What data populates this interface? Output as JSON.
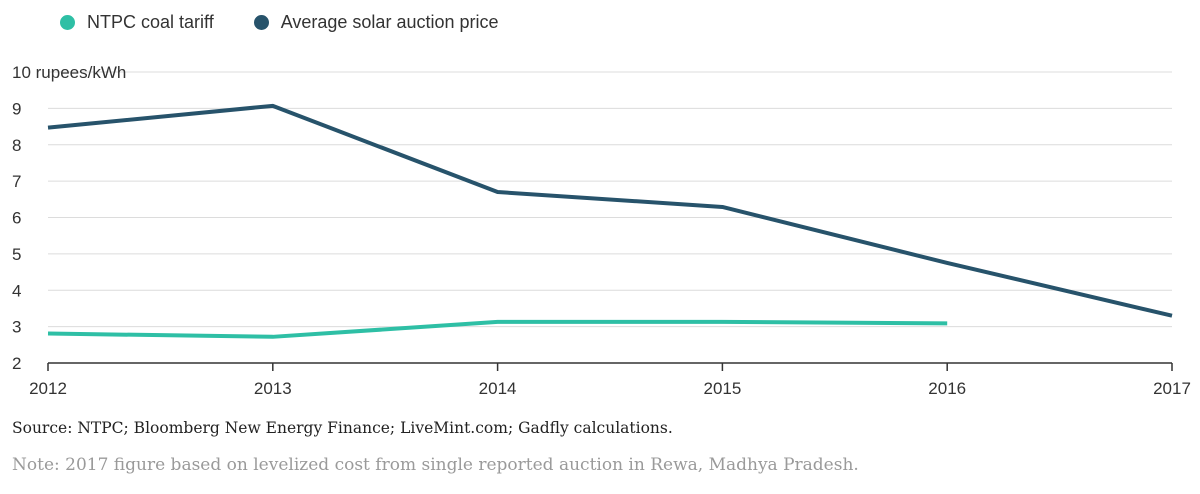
{
  "legend": {
    "items": [
      {
        "label": "NTPC coal tariff",
        "color": "#2ebfa5"
      },
      {
        "label": "Average solar auction price",
        "color": "#27536b"
      }
    ]
  },
  "chart_data": {
    "type": "line",
    "title": "",
    "xlabel": "",
    "ylabel": "",
    "x": [
      2012,
      2013,
      2014,
      2015,
      2016,
      2017
    ],
    "x_tick_labels": [
      "2012",
      "2013",
      "2014",
      "2015",
      "2016",
      "2017"
    ],
    "ylim": [
      2,
      10
    ],
    "y_tick_labels": [
      "2",
      "3",
      "4",
      "5",
      "6",
      "7",
      "8",
      "9",
      "10 rupees/kWh"
    ],
    "y_ticks": [
      2,
      3,
      4,
      5,
      6,
      7,
      8,
      9,
      10
    ],
    "grid": true,
    "series": [
      {
        "name": "NTPC coal tariff",
        "color": "#2ebfa5",
        "points": [
          [
            2012,
            2.81
          ],
          [
            2013,
            2.72
          ],
          [
            2014,
            3.13
          ],
          [
            2015,
            3.13
          ],
          [
            2016,
            3.09
          ]
        ]
      },
      {
        "name": "Average solar auction price",
        "color": "#27536b",
        "points": [
          [
            2012,
            8.47
          ],
          [
            2013,
            9.07
          ],
          [
            2014,
            6.7
          ],
          [
            2015,
            6.29
          ],
          [
            2016,
            4.75
          ],
          [
            2017,
            3.3
          ]
        ]
      }
    ]
  },
  "footnotes": {
    "source": "Source: NTPC; Bloomberg New Energy Finance; LiveMint.com; Gadfly calculations.",
    "note": "Note: 2017 figure based on levelized cost from single reported auction in Rewa, Madhya Pradesh."
  }
}
